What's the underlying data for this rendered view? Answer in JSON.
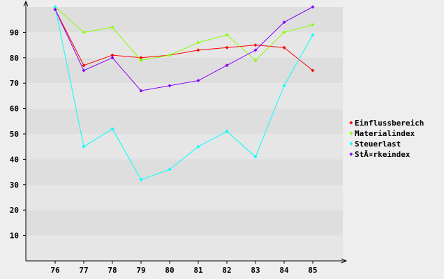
{
  "chart_data": {
    "type": "line",
    "categories": [
      "76",
      "77",
      "78",
      "79",
      "80",
      "81",
      "82",
      "83",
      "84",
      "85"
    ],
    "series": [
      {
        "name": "Einflussbereich",
        "color": "#ff0000",
        "values": [
          99,
          77,
          81,
          80,
          81,
          83,
          84,
          85,
          84,
          75
        ]
      },
      {
        "name": "Materialindex",
        "color": "#88ff00",
        "values": [
          100,
          90,
          92,
          79,
          81,
          86,
          89,
          79,
          90,
          93
        ]
      },
      {
        "name": "Steuerlast",
        "color": "#00ffff",
        "values": [
          100,
          45,
          52,
          32,
          36,
          45,
          51,
          41,
          69,
          89
        ]
      },
      {
        "name": "StÃ¤rkeindex",
        "color": "#8800ff",
        "values": [
          99,
          75,
          80,
          67,
          69,
          71,
          77,
          83,
          94,
          100
        ]
      }
    ],
    "y_ticks": [
      "10",
      "20",
      "30",
      "40",
      "50",
      "60",
      "70",
      "80",
      "90"
    ],
    "ylim": [
      0,
      100
    ],
    "grid": true,
    "legend_position": "right"
  }
}
